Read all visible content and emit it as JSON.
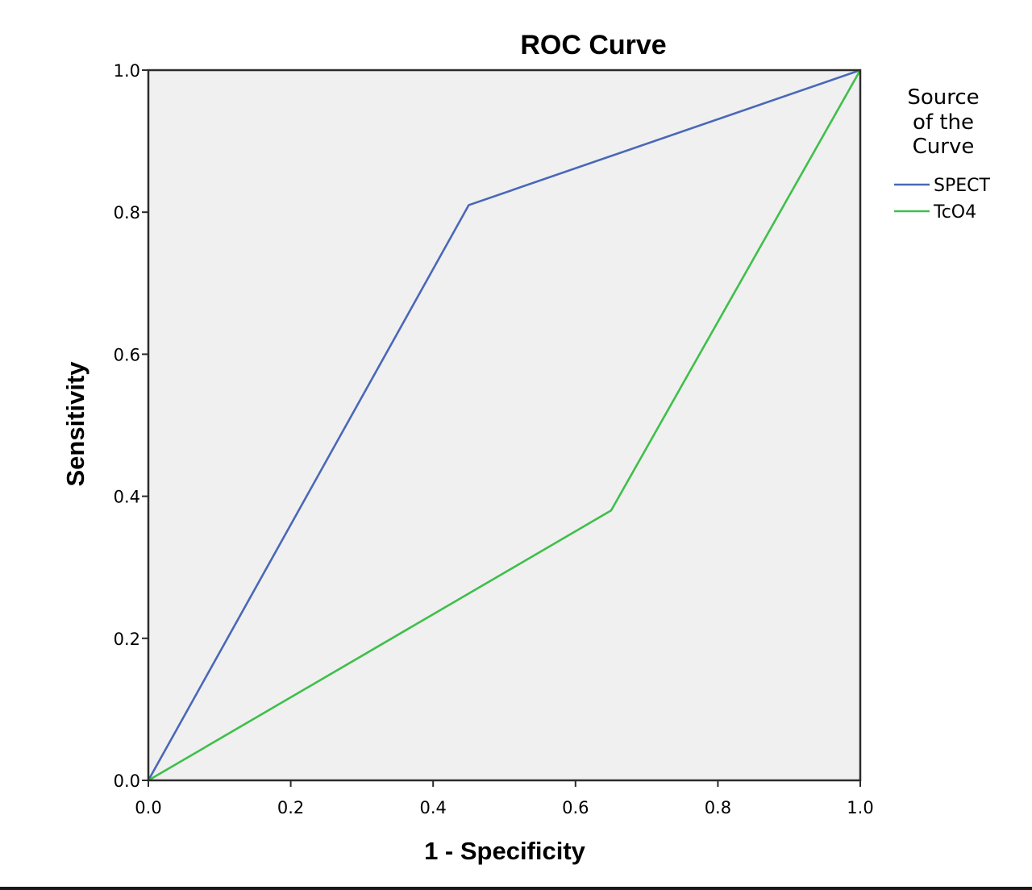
{
  "chart_data": {
    "type": "line",
    "title": "ROC Curve",
    "xlabel": "1 - Specificity",
    "ylabel": "Sensitivity",
    "xlim": [
      0,
      1
    ],
    "ylim": [
      0,
      1
    ],
    "x_ticks": [
      "0.0",
      "0.2",
      "0.4",
      "0.6",
      "0.8",
      "1.0"
    ],
    "y_ticks": [
      "0.0",
      "0.2",
      "0.4",
      "0.6",
      "0.8",
      "1.0"
    ],
    "grid": false,
    "plot_background": "#f0f0f0",
    "legend": {
      "title_lines": [
        "Source",
        "of the",
        "Curve"
      ],
      "placement": "right"
    },
    "series": [
      {
        "name": "SPECT",
        "color": "#4a68b8",
        "points": [
          [
            0.0,
            0.0
          ],
          [
            0.45,
            0.81
          ],
          [
            1.0,
            1.0
          ]
        ]
      },
      {
        "name": "TcO4",
        "color": "#3fbf4a",
        "points": [
          [
            0.0,
            0.0
          ],
          [
            0.65,
            0.38
          ],
          [
            1.0,
            1.0
          ]
        ]
      }
    ]
  }
}
